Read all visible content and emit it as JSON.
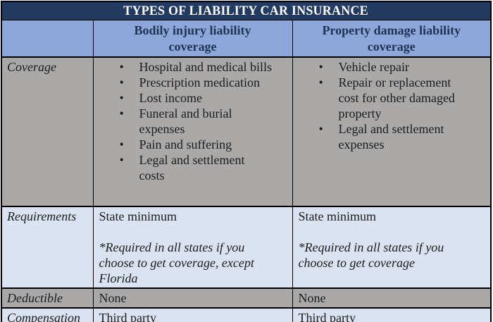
{
  "title": "TYPES OF LIABILITY CAR INSURANCE",
  "columns": {
    "bodily_header": "Bodily injury liability coverage",
    "property_header": "Property damage liability coverage"
  },
  "rows": {
    "coverage": {
      "label": "Coverage",
      "bodily_items": [
        "Hospital and medical bills",
        "Prescription medication",
        "Lost income",
        "Funeral and burial expenses",
        "Pain and suffering",
        "Legal and settlement costs"
      ],
      "property_items": [
        "Vehicle repair",
        "Repair or replacement cost for other damaged property",
        "Legal and settlement expenses"
      ]
    },
    "requirements": {
      "label": "Requirements",
      "bodily_main": "State minimum",
      "bodily_note": "*Required in all states if you choose to get coverage, except Florida",
      "property_main": "State minimum",
      "property_note": "*Required in all states if you choose to get coverage"
    },
    "deductible": {
      "label": "Deductible",
      "bodily": "None",
      "property": "None"
    },
    "compensation": {
      "label": "Compensation",
      "bodily": "Third party",
      "property": "Third party"
    }
  },
  "colors": {
    "title_bg": "#233A60",
    "title_text": "#FFFFFF",
    "header_bg": "#8DA7DA",
    "header_text": "#1F3355",
    "gray_row_bg": "#ABA8A8",
    "blue_row_bg": "#DBE3F2",
    "body_text": "#1C1C1C",
    "border": "#000000"
  }
}
